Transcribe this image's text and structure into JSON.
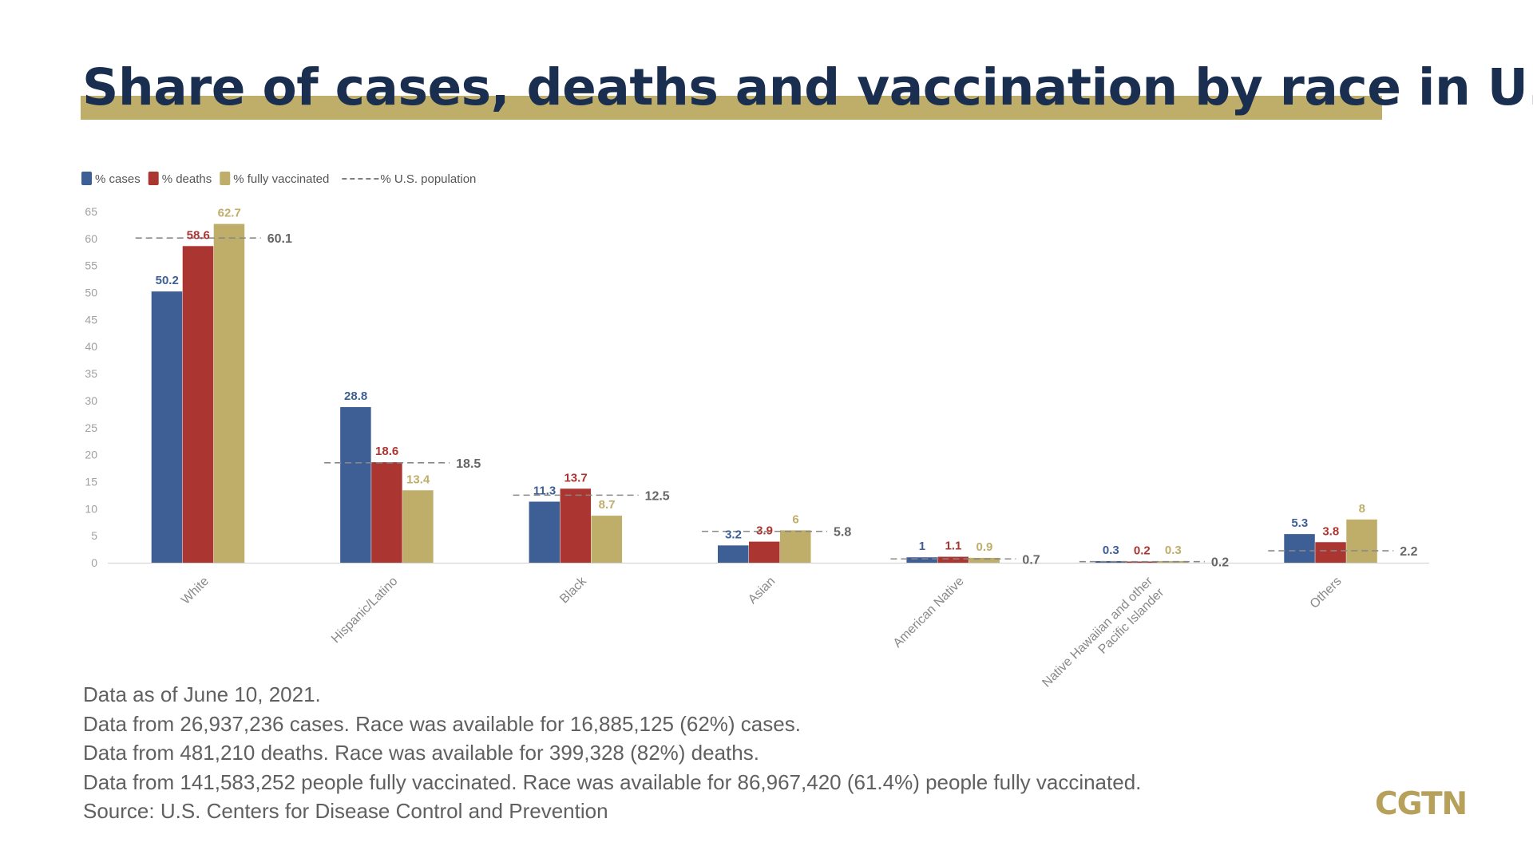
{
  "title": "Share of cases, deaths and vaccination by race in U.S.",
  "colors": {
    "cases": "#3e5f95",
    "deaths": "#ab3530",
    "vaccinated": "#bfad6a",
    "population_line": "#888888",
    "title_text": "#1a2e50",
    "title_bar": "#bfad6a",
    "axis_text": "#a0a0a0",
    "logo": "#b6a05a"
  },
  "chart_data": {
    "type": "bar",
    "categories": [
      "White",
      "Hispanic/Latino",
      "Black",
      "Asian",
      "American Native",
      "Native Hawaiian and other Pacific Islander",
      "Others"
    ],
    "category_label_lines": [
      [
        "White"
      ],
      [
        "Hispanic/Latino"
      ],
      [
        "Black"
      ],
      [
        "Asian"
      ],
      [
        "American Native"
      ],
      [
        "Native Hawaiian and other",
        "Pacific Islander"
      ],
      [
        "Others"
      ]
    ],
    "series": [
      {
        "name": "% cases",
        "key": "cases",
        "values": [
          50.2,
          28.8,
          11.3,
          3.2,
          1,
          0.3,
          5.3
        ],
        "labels": [
          "50.2",
          "28.8",
          "11.3",
          "3.2",
          "1",
          "0.3",
          "5.3"
        ]
      },
      {
        "name": "% deaths",
        "key": "deaths",
        "values": [
          58.6,
          18.6,
          13.7,
          3.9,
          1.1,
          0.2,
          3.8
        ],
        "labels": [
          "58.6",
          "18.6",
          "13.7",
          "3.9",
          "1.1",
          "0.2",
          "3.8"
        ]
      },
      {
        "name": "% fully vaccinated",
        "key": "vaccinated",
        "values": [
          62.7,
          13.4,
          8.7,
          6,
          0.9,
          0.3,
          8
        ],
        "labels": [
          "62.7",
          "13.4",
          "8.7",
          "6",
          "0.9",
          "0.3",
          "8"
        ]
      }
    ],
    "reference_line": {
      "name": "% U.S. population",
      "values": [
        60.1,
        18.5,
        12.5,
        5.8,
        0.7,
        0.2,
        2.2
      ],
      "labels": [
        "60.1",
        "18.5",
        "12.5",
        "5.8",
        "0.7",
        "0.2",
        "2.2"
      ]
    },
    "ylim": [
      0,
      65
    ],
    "yticks": [
      0,
      5,
      10,
      15,
      20,
      25,
      30,
      35,
      40,
      45,
      50,
      55,
      60,
      65
    ],
    "legend_position": "top-left",
    "grid": false
  },
  "notes": [
    "Data as of June 10, 2021.",
    "Data from 26,937,236 cases. Race was available for 16,885,125 (62%) cases.",
    "Data from 481,210 deaths. Race was available for 399,328 (82%) deaths.",
    "Data from 141,583,252 people fully vaccinated. Race was available for 86,967,420 (61.4%) people fully vaccinated.",
    "Source: U.S. Centers for Disease Control and Prevention"
  ],
  "logo": "CGTN"
}
